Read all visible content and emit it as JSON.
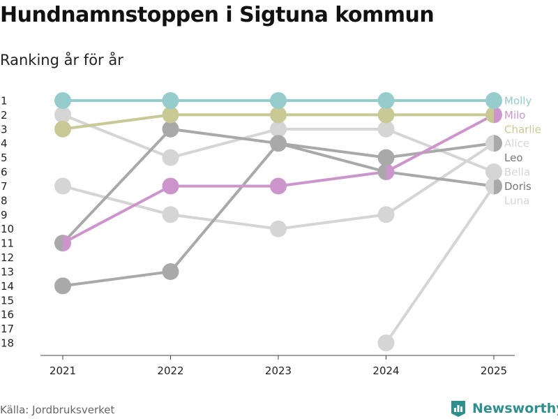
{
  "title": "Hundnamnstoppen i Sigtuna kommun",
  "subtitle": "Ranking år för år",
  "source": "Källa: Jordbruksverket",
  "brand": "Newsworthy",
  "colors": {
    "teal": "#96cccc",
    "olive": "#c9c996",
    "purple": "#cc96cc",
    "darkgray": "#a9a9a9",
    "lightgray": "#d5d5d5",
    "brand": "#2f8f8f"
  },
  "chart_data": {
    "type": "line",
    "title": "Hundnamnstoppen i Sigtuna kommun",
    "subtitle": "Ranking år för år",
    "x": [
      "2021",
      "2022",
      "2023",
      "2024",
      "2025"
    ],
    "y_ticks": [
      1,
      2,
      3,
      4,
      5,
      6,
      7,
      8,
      9,
      10,
      11,
      12,
      13,
      14,
      15,
      16,
      17,
      18
    ],
    "ylim": [
      1,
      18
    ],
    "y_inverted": true,
    "series": [
      {
        "name": "Luna",
        "values": [
          null,
          null,
          null,
          18,
          7
        ],
        "color": "#d5d5d5",
        "label_color": "#d5d5d5"
      },
      {
        "name": "Bella",
        "values": [
          7,
          9,
          10,
          9,
          4
        ],
        "color": "#d5d5d5",
        "label_color": "#d5d5d5"
      },
      {
        "name": "Alice",
        "values": [
          2,
          5,
          3,
          3,
          6
        ],
        "color": "#d5d5d5",
        "label_color": "#d5d5d5"
      },
      {
        "name": "Leo",
        "values": [
          14,
          13,
          4,
          6,
          7
        ],
        "color": "#a9a9a9",
        "label_color": "#777777"
      },
      {
        "name": "Doris",
        "values": [
          11,
          3,
          4,
          5,
          4
        ],
        "color": "#a9a9a9",
        "label_color": "#777777"
      },
      {
        "name": "Charlie",
        "values": [
          3,
          2,
          2,
          2,
          2
        ],
        "color": "#c9c996",
        "label_color": "#c9c996"
      },
      {
        "name": "Milo",
        "values": [
          11,
          7,
          7,
          6,
          2
        ],
        "color": "#cc96cc",
        "label_color": "#cc96cc"
      },
      {
        "name": "Molly",
        "values": [
          1,
          1,
          1,
          1,
          1
        ],
        "color": "#96cccc",
        "label_color": "#96cccc"
      }
    ],
    "end_labels": [
      "Molly",
      "Milo",
      "Charlie",
      "Alice",
      "Leo",
      "Bella",
      "Doris",
      "Luna"
    ]
  }
}
